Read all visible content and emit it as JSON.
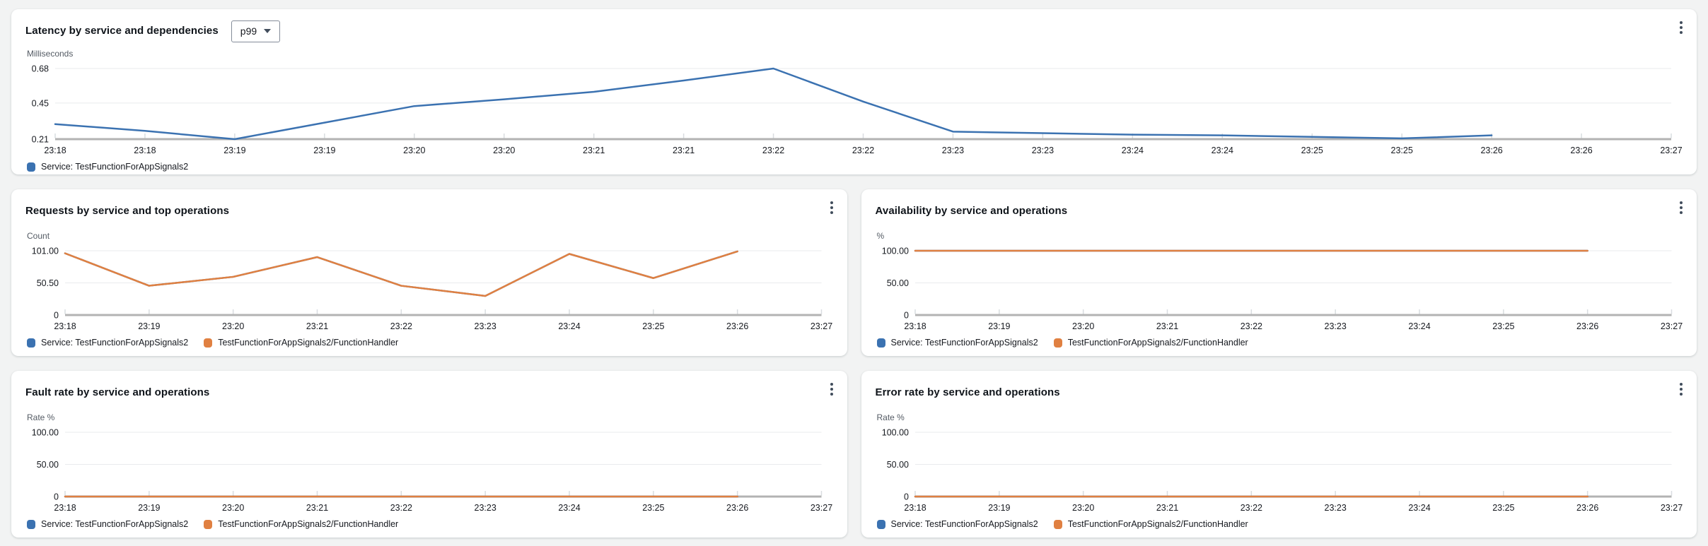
{
  "page": {
    "background": "#f2f3f3"
  },
  "colors": {
    "blue": "#3b72b1",
    "orange": "#e08041",
    "grid": "#e9ebed",
    "axis": "#b3b3b3",
    "tick_mark": "#d9dde0",
    "tick_text": "#16191f",
    "muted_text": "#545b64",
    "title_text": "#0f141a",
    "kebab": "#414d5c"
  },
  "icons": {
    "card_menu": "kebab-vertical-menu-icon",
    "selector_caret": "caret-down-icon",
    "legend_marker": "series-color-swatch"
  },
  "latency_selector": {
    "value": "p99"
  },
  "chart_data": [
    {
      "type": "line",
      "title": "Latency by service and dependencies",
      "unit": "Milliseconds",
      "grid": true,
      "legend_position": "bottom",
      "y_min": 0.21,
      "y_max": 0.68,
      "y_ticks": [
        {
          "label": "0.68",
          "value": 0.68
        },
        {
          "label": "0.45",
          "value": 0.45
        },
        {
          "label": "0.21",
          "value": 0.21
        }
      ],
      "x_ticks": [
        "23:18",
        "23:18",
        "23:19",
        "23:19",
        "23:20",
        "23:20",
        "23:21",
        "23:21",
        "23:22",
        "23:22",
        "23:23",
        "23:23",
        "23:24",
        "23:24",
        "23:25",
        "23:25",
        "23:26",
        "23:26",
        "23:27"
      ],
      "series": [
        {
          "name": "Service: TestFunctionForAppSignals2",
          "color_key": "blue",
          "values": [
            0.31,
            0.265,
            0.21,
            0.32,
            0.43,
            0.475,
            0.525,
            0.6,
            0.68,
            0.46,
            0.26,
            0.25,
            0.24,
            0.235,
            0.225,
            0.215,
            0.235
          ]
        }
      ],
      "legend": [
        {
          "label": "Service: TestFunctionForAppSignals2",
          "color_key": "blue"
        }
      ]
    },
    {
      "type": "line",
      "title": "Requests by service and top operations",
      "unit": "Count",
      "grid": true,
      "legend_position": "bottom",
      "y_min": 0,
      "y_max": 101,
      "y_ticks": [
        {
          "label": "101.00",
          "value": 101
        },
        {
          "label": "50.50",
          "value": 50.5
        },
        {
          "label": "0",
          "value": 0
        }
      ],
      "x_ticks": [
        "23:18",
        "23:19",
        "23:20",
        "23:21",
        "23:22",
        "23:23",
        "23:24",
        "23:25",
        "23:26",
        "23:27"
      ],
      "series": [
        {
          "name": "Service: TestFunctionForAppSignals2",
          "color_key": "blue",
          "values": [
            97,
            46,
            60,
            91,
            46,
            30,
            96,
            58,
            100
          ]
        },
        {
          "name": "TestFunctionForAppSignals2/FunctionHandler",
          "color_key": "orange",
          "values": [
            97,
            46,
            60,
            91,
            46,
            30,
            96,
            58,
            100
          ]
        }
      ],
      "legend": [
        {
          "label": "Service: TestFunctionForAppSignals2",
          "color_key": "blue"
        },
        {
          "label": "TestFunctionForAppSignals2/FunctionHandler",
          "color_key": "orange"
        }
      ]
    },
    {
      "type": "line",
      "title": "Availability by service and operations",
      "unit": "%",
      "grid": true,
      "legend_position": "bottom",
      "y_min": 0,
      "y_max": 100,
      "y_ticks": [
        {
          "label": "100.00",
          "value": 100
        },
        {
          "label": "50.00",
          "value": 50
        },
        {
          "label": "0",
          "value": 0
        }
      ],
      "x_ticks": [
        "23:18",
        "23:19",
        "23:20",
        "23:21",
        "23:22",
        "23:23",
        "23:24",
        "23:25",
        "23:26",
        "23:27"
      ],
      "series": [
        {
          "name": "Service: TestFunctionForAppSignals2",
          "color_key": "blue",
          "values": [
            100,
            100,
            100,
            100,
            100,
            100,
            100,
            100,
            100
          ]
        },
        {
          "name": "TestFunctionForAppSignals2/FunctionHandler",
          "color_key": "orange",
          "values": [
            100,
            100,
            100,
            100,
            100,
            100,
            100,
            100,
            100
          ]
        }
      ],
      "legend": [
        {
          "label": "Service: TestFunctionForAppSignals2",
          "color_key": "blue"
        },
        {
          "label": "TestFunctionForAppSignals2/FunctionHandler",
          "color_key": "orange"
        }
      ]
    },
    {
      "type": "line",
      "title": "Fault rate by service and operations",
      "unit": "Rate %",
      "grid": true,
      "legend_position": "bottom",
      "y_min": 0,
      "y_max": 100,
      "y_ticks": [
        {
          "label": "100.00",
          "value": 100
        },
        {
          "label": "50.00",
          "value": 50
        },
        {
          "label": "0",
          "value": 0
        }
      ],
      "x_ticks": [
        "23:18",
        "23:19",
        "23:20",
        "23:21",
        "23:22",
        "23:23",
        "23:24",
        "23:25",
        "23:26",
        "23:27"
      ],
      "series": [
        {
          "name": "Service: TestFunctionForAppSignals2",
          "color_key": "blue",
          "values": [
            0,
            0,
            0,
            0,
            0,
            0,
            0,
            0,
            0
          ]
        },
        {
          "name": "TestFunctionForAppSignals2/FunctionHandler",
          "color_key": "orange",
          "values": [
            0,
            0,
            0,
            0,
            0,
            0,
            0,
            0,
            0
          ]
        }
      ],
      "legend": [
        {
          "label": "Service: TestFunctionForAppSignals2",
          "color_key": "blue"
        },
        {
          "label": "TestFunctionForAppSignals2/FunctionHandler",
          "color_key": "orange"
        }
      ]
    },
    {
      "type": "line",
      "title": "Error rate by service and operations",
      "unit": "Rate %",
      "grid": true,
      "legend_position": "bottom",
      "y_min": 0,
      "y_max": 100,
      "y_ticks": [
        {
          "label": "100.00",
          "value": 100
        },
        {
          "label": "50.00",
          "value": 50
        },
        {
          "label": "0",
          "value": 0
        }
      ],
      "x_ticks": [
        "23:18",
        "23:19",
        "23:20",
        "23:21",
        "23:22",
        "23:23",
        "23:24",
        "23:25",
        "23:26",
        "23:27"
      ],
      "series": [
        {
          "name": "Service: TestFunctionForAppSignals2",
          "color_key": "blue",
          "values": [
            0,
            0,
            0,
            0,
            0,
            0,
            0,
            0,
            0
          ]
        },
        {
          "name": "TestFunctionForAppSignals2/FunctionHandler",
          "color_key": "orange",
          "values": [
            0,
            0,
            0,
            0,
            0,
            0,
            0,
            0,
            0
          ]
        }
      ],
      "legend": [
        {
          "label": "Service: TestFunctionForAppSignals2",
          "color_key": "blue"
        },
        {
          "label": "TestFunctionForAppSignals2/FunctionHandler",
          "color_key": "orange"
        }
      ]
    }
  ]
}
